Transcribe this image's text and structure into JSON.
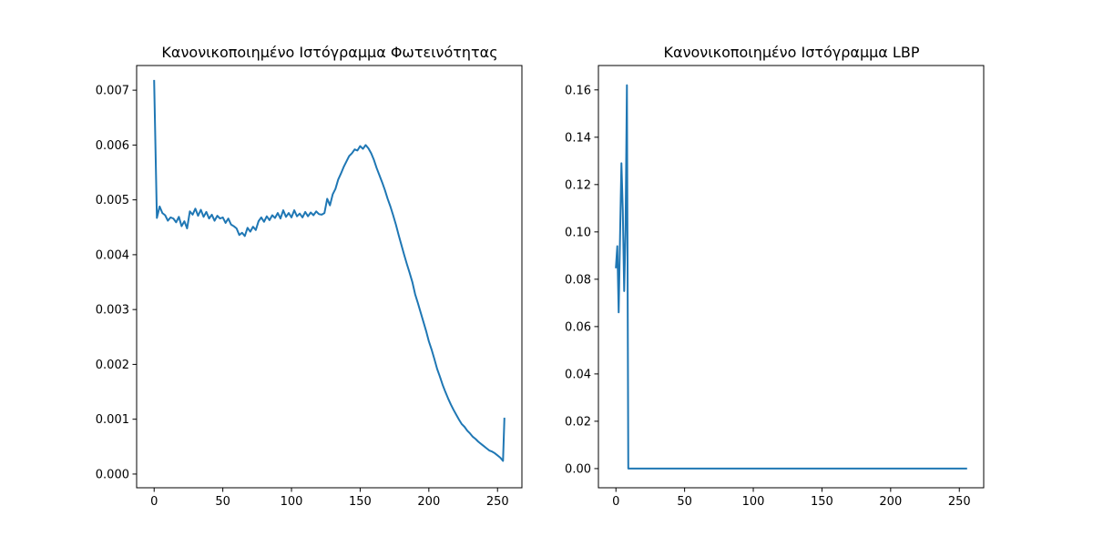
{
  "chart_data": [
    {
      "type": "line",
      "title": "Κανονικοποιημένο Ιστόγραμμα Φωτεινότητας",
      "xlabel": "",
      "ylabel": "",
      "xlim": [
        -12.75,
        267.75
      ],
      "ylim": [
        -0.00025,
        0.00745
      ],
      "xticks": [
        0,
        50,
        100,
        150,
        200,
        250
      ],
      "xtick_labels": [
        "0",
        "50",
        "100",
        "150",
        "200",
        "250"
      ],
      "yticks": [
        0.0,
        0.001,
        0.002,
        0.003,
        0.004,
        0.005,
        0.006,
        0.007
      ],
      "ytick_labels": [
        "0.000",
        "0.001",
        "0.002",
        "0.003",
        "0.004",
        "0.005",
        "0.006",
        "0.007"
      ],
      "grid": false,
      "series": [
        {
          "color": "#1f77b4",
          "x": [
            0,
            2,
            4,
            6,
            8,
            10,
            12,
            14,
            16,
            18,
            20,
            22,
            24,
            26,
            28,
            30,
            32,
            34,
            36,
            38,
            40,
            42,
            44,
            46,
            48,
            50,
            52,
            54,
            56,
            58,
            60,
            62,
            64,
            66,
            68,
            70,
            72,
            74,
            76,
            78,
            80,
            82,
            84,
            86,
            88,
            90,
            92,
            94,
            96,
            98,
            100,
            102,
            104,
            106,
            108,
            110,
            112,
            114,
            116,
            118,
            120,
            122,
            124,
            126,
            128,
            130,
            132,
            134,
            136,
            138,
            140,
            142,
            144,
            146,
            148,
            150,
            152,
            154,
            156,
            158,
            160,
            162,
            164,
            166,
            168,
            170,
            172,
            174,
            176,
            178,
            180,
            182,
            184,
            186,
            188,
            190,
            192,
            194,
            196,
            198,
            200,
            202,
            204,
            206,
            208,
            210,
            212,
            214,
            216,
            218,
            220,
            222,
            224,
            226,
            228,
            230,
            232,
            234,
            236,
            238,
            240,
            242,
            244,
            246,
            248,
            250,
            252,
            254,
            255
          ],
          "y": [
            0.00717,
            0.00467,
            0.00488,
            0.00476,
            0.00472,
            0.00462,
            0.00468,
            0.00466,
            0.00459,
            0.00469,
            0.00452,
            0.00461,
            0.00448,
            0.00479,
            0.00473,
            0.00484,
            0.00471,
            0.00482,
            0.00469,
            0.00478,
            0.00466,
            0.00473,
            0.00462,
            0.00471,
            0.00466,
            0.00468,
            0.00458,
            0.00466,
            0.00455,
            0.00452,
            0.00448,
            0.00436,
            0.0044,
            0.00434,
            0.00449,
            0.00442,
            0.00451,
            0.00445,
            0.00461,
            0.00468,
            0.0046,
            0.0047,
            0.00463,
            0.00472,
            0.00467,
            0.00476,
            0.00466,
            0.00481,
            0.00469,
            0.00476,
            0.00468,
            0.00481,
            0.0047,
            0.00475,
            0.00468,
            0.00478,
            0.0047,
            0.00477,
            0.00472,
            0.00479,
            0.00474,
            0.00473,
            0.00476,
            0.00502,
            0.0049,
            0.0051,
            0.0052,
            0.00537,
            0.00548,
            0.0056,
            0.0057,
            0.0058,
            0.00585,
            0.00592,
            0.0059,
            0.00598,
            0.00593,
            0.006,
            0.00594,
            0.00585,
            0.00573,
            0.00558,
            0.00545,
            0.00532,
            0.00518,
            0.00502,
            0.00488,
            0.00472,
            0.00455,
            0.00436,
            0.00418,
            0.004,
            0.00383,
            0.00367,
            0.0035,
            0.00328,
            0.00312,
            0.00295,
            0.00278,
            0.00261,
            0.00242,
            0.00227,
            0.0021,
            0.00192,
            0.00178,
            0.00163,
            0.0015,
            0.00138,
            0.00127,
            0.00117,
            0.00108,
            0.00099,
            0.00091,
            0.00086,
            0.00079,
            0.00074,
            0.00068,
            0.00064,
            0.00059,
            0.00055,
            0.00051,
            0.00047,
            0.00043,
            0.00041,
            0.00038,
            0.00034,
            0.0003,
            0.00024,
            0.00101
          ]
        }
      ]
    },
    {
      "type": "line",
      "title": "Κανονικοποιημένο Ιστόγραμμα LBP",
      "xlabel": "",
      "ylabel": "",
      "xlim": [
        -12.75,
        267.75
      ],
      "ylim": [
        -0.0081,
        0.1703
      ],
      "xticks": [
        0,
        50,
        100,
        150,
        200,
        250
      ],
      "xtick_labels": [
        "0",
        "50",
        "100",
        "150",
        "200",
        "250"
      ],
      "yticks": [
        0.0,
        0.02,
        0.04,
        0.06,
        0.08,
        0.1,
        0.12,
        0.14,
        0.16
      ],
      "ytick_labels": [
        "0.00",
        "0.02",
        "0.04",
        "0.06",
        "0.08",
        "0.10",
        "0.12",
        "0.14",
        "0.16"
      ],
      "grid": false,
      "series": [
        {
          "color": "#1f77b4",
          "x": [
            0,
            1,
            2,
            3,
            4,
            5,
            6,
            7,
            8,
            9,
            10,
            255
          ],
          "y": [
            0.085,
            0.094,
            0.066,
            0.098,
            0.129,
            0.109,
            0.075,
            0.101,
            0.162,
            0.0,
            0.0,
            0.0
          ]
        }
      ]
    }
  ]
}
